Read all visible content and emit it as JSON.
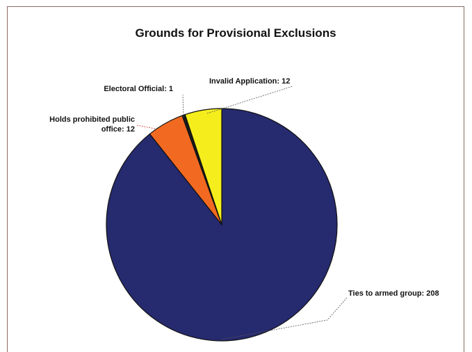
{
  "chart_data": {
    "type": "pie",
    "title": "Grounds for Provisional Exclusions",
    "slices": [
      {
        "name": "Ties to armed group",
        "value": 208,
        "color": "#262a6e",
        "label_lines": [
          "Ties to armed group: 208"
        ]
      },
      {
        "name": "Holds prohibited public office",
        "value": 12,
        "color": "#f26a21",
        "label_lines": [
          "Holds prohibited public",
          "office: 12"
        ]
      },
      {
        "name": "Electoral Official",
        "value": 1,
        "color": "#1a1a1a",
        "label_lines": [
          "Electoral Official: 1"
        ]
      },
      {
        "name": "Invalid Application",
        "value": 12,
        "color": "#f5ee1c",
        "label_lines": [
          "Invalid Application: 12"
        ]
      }
    ],
    "legend": "none"
  }
}
